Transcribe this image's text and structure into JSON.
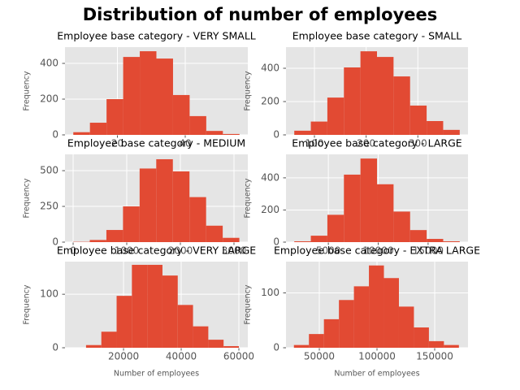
{
  "title": "Distribution of number of employees",
  "chart_data": [
    {
      "type": "histogram",
      "title": "Employee base category - VERY SMALL",
      "ylabel": "Frequency",
      "bins": [
        7,
        11.9,
        16.8,
        21.7,
        26.6,
        31.5,
        36.4,
        41.3,
        46.2,
        51.1,
        56
      ],
      "counts": [
        15,
        68,
        200,
        436,
        468,
        427,
        223,
        105,
        22,
        5
      ],
      "xlim": [
        4.55,
        58.45
      ],
      "ylim": [
        0,
        491
      ],
      "xticks": [
        20,
        40
      ],
      "yticks": [
        0,
        200,
        400
      ],
      "color": "#e24a33",
      "grid": true
    },
    {
      "type": "histogram",
      "title": "Employee base category - SMALL",
      "ylabel": "Frequency",
      "bins": [
        61,
        93,
        125,
        157,
        189,
        221,
        253,
        285,
        317,
        349,
        381
      ],
      "counts": [
        25,
        80,
        224,
        405,
        502,
        468,
        351,
        176,
        83,
        30
      ],
      "xlim": [
        45,
        397
      ],
      "ylim": [
        0,
        527
      ],
      "xticks": [
        100,
        200,
        300
      ],
      "yticks": [
        0,
        200,
        400
      ],
      "color": "#e24a33",
      "grid": true
    },
    {
      "type": "histogram",
      "title": "Employee base category - MEDIUM",
      "ylabel": "Frequency",
      "bins": [
        0,
        310,
        620,
        930,
        1240,
        1550,
        1860,
        2170,
        2480,
        2790,
        3100
      ],
      "counts": [
        2,
        15,
        85,
        250,
        515,
        580,
        495,
        315,
        115,
        30
      ],
      "xlim": [
        -152,
        3258
      ],
      "ylim": [
        0,
        614
      ],
      "xticks": [
        0,
        1000,
        2000,
        3000
      ],
      "yticks": [
        0,
        250,
        500
      ],
      "color": "#e24a33",
      "grid": true
    },
    {
      "type": "histogram",
      "title": "Employee base category - LARGE",
      "ylabel": "Frequency",
      "bins": [
        1584,
        3243,
        4902,
        6561,
        8220,
        9879,
        11538,
        13197,
        14856,
        16515,
        18174
      ],
      "counts": [
        5,
        40,
        170,
        420,
        520,
        360,
        190,
        75,
        20,
        5
      ],
      "xlim": [
        755,
        19000
      ],
      "ylim": [
        0,
        546
      ],
      "xticks": [
        5000,
        10000,
        15000
      ],
      "yticks": [
        0,
        200,
        400
      ],
      "color": "#e24a33",
      "grid": true
    },
    {
      "type": "histogram",
      "title": "Employee base category - VERY LARGE",
      "ylabel": "Frequency",
      "xlabel": "Number of employees",
      "bins": [
        7000,
        12300,
        17600,
        22900,
        28200,
        33500,
        38800,
        44100,
        49400,
        54700,
        60000
      ],
      "counts": [
        5,
        30,
        97,
        155,
        155,
        135,
        80,
        40,
        15,
        3
      ],
      "xlim": [
        -300,
        63100
      ],
      "ylim": [
        0,
        161
      ],
      "xticks": [
        20000,
        40000,
        60000
      ],
      "yticks": [
        0,
        100
      ],
      "color": "#e24a33",
      "grid": true
    },
    {
      "type": "histogram",
      "title": "Employee base category - EXTRA LARGE",
      "ylabel": "Frequency",
      "xlabel": "Number of employees",
      "bins": [
        28000,
        41000,
        54000,
        67000,
        80000,
        93000,
        106000,
        119000,
        132000,
        145000,
        158000,
        171000
      ],
      "counts": [
        5,
        25,
        52,
        87,
        112,
        150,
        127,
        75,
        37,
        12,
        5
      ],
      "xlim": [
        21130,
        178870
      ],
      "ylim": [
        0,
        157
      ],
      "xticks": [
        50000,
        100000,
        150000
      ],
      "yticks": [
        0,
        100
      ],
      "color": "#e24a33",
      "grid": true
    }
  ]
}
